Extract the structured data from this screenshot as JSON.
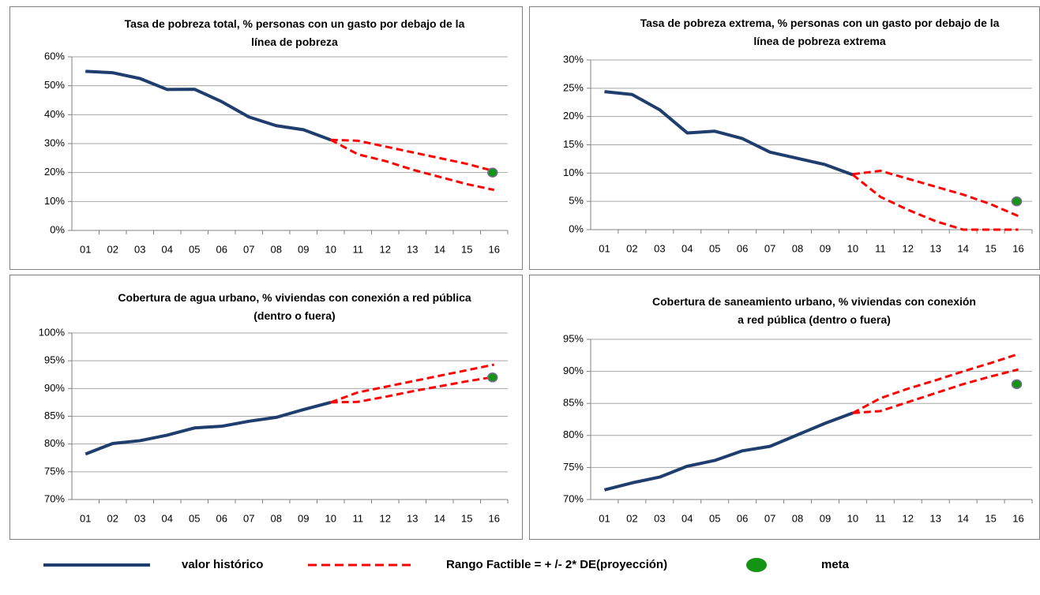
{
  "chart_data": [
    {
      "type": "line",
      "title": "Tasa de pobreza total, % personas con un gasto por debajo de la línea de pobreza",
      "categories": [
        "01",
        "02",
        "03",
        "04",
        "05",
        "06",
        "07",
        "08",
        "09",
        "10",
        "11",
        "12",
        "13",
        "14",
        "15",
        "16"
      ],
      "series": [
        {
          "color": "#1f3e6e",
          "values": [
            55,
            54.5,
            52.5,
            48.7,
            48.8,
            44.5,
            39.2,
            36.2,
            34.8,
            31.3,
            null,
            null,
            null,
            null,
            null,
            null
          ]
        },
        {
          "color": "#ff0000",
          "style": "dashed",
          "values": [
            null,
            null,
            null,
            null,
            null,
            null,
            null,
            null,
            null,
            31.3,
            31,
            29,
            27,
            25,
            23,
            20.5
          ]
        },
        {
          "color": "#ff0000",
          "style": "dashed",
          "values": [
            null,
            null,
            null,
            null,
            null,
            null,
            null,
            null,
            null,
            31.3,
            26.3,
            24,
            21,
            18.5,
            16,
            14
          ]
        },
        {
          "color": "#139413",
          "style": "marker",
          "values": [
            null,
            null,
            null,
            null,
            null,
            null,
            null,
            null,
            null,
            null,
            null,
            null,
            null,
            null,
            null,
            20
          ]
        }
      ],
      "ylim": [
        0,
        60
      ],
      "yticks": [
        {
          "value": 0,
          "label": "0%"
        },
        {
          "value": 10,
          "label": "10%"
        },
        {
          "value": 20,
          "label": "20%"
        },
        {
          "value": 30,
          "label": "30%"
        },
        {
          "value": 40,
          "label": "40%"
        },
        {
          "value": 50,
          "label": "50%"
        },
        {
          "value": 60,
          "label": "60%"
        }
      ],
      "grid": true
    },
    {
      "type": "line",
      "title": "Tasa de pobreza extrema, % personas con un gasto por debajo de la línea de pobreza extrema",
      "categories": [
        "01",
        "02",
        "03",
        "04",
        "05",
        "06",
        "07",
        "08",
        "09",
        "10",
        "11",
        "12",
        "13",
        "14",
        "15",
        "16"
      ],
      "series": [
        {
          "color": "#1f3e6e",
          "values": [
            24.4,
            23.9,
            21.2,
            17.1,
            17.4,
            16.1,
            13.7,
            12.6,
            11.5,
            9.7,
            null,
            null,
            null,
            null,
            null,
            null
          ]
        },
        {
          "color": "#ff0000",
          "style": "dashed",
          "values": [
            null,
            null,
            null,
            null,
            null,
            null,
            null,
            null,
            null,
            9.8,
            10.4,
            9,
            7.6,
            6.2,
            4.5,
            2.4
          ]
        },
        {
          "color": "#ff0000",
          "style": "dashed",
          "values": [
            null,
            null,
            null,
            null,
            null,
            null,
            null,
            null,
            null,
            9.7,
            5.8,
            3.5,
            1.5,
            0,
            0,
            0
          ]
        },
        {
          "color": "#139413",
          "style": "marker",
          "values": [
            null,
            null,
            null,
            null,
            null,
            null,
            null,
            null,
            null,
            null,
            null,
            null,
            null,
            null,
            null,
            5
          ]
        }
      ],
      "ylim": [
        0,
        30
      ],
      "yticks": [
        {
          "value": 0,
          "label": "0%"
        },
        {
          "value": 5,
          "label": "5%"
        },
        {
          "value": 10,
          "label": "10%"
        },
        {
          "value": 15,
          "label": "15%"
        },
        {
          "value": 20,
          "label": "20%"
        },
        {
          "value": 25,
          "label": "25%"
        },
        {
          "value": 30,
          "label": "30%"
        }
      ],
      "grid": true
    },
    {
      "type": "line",
      "title": "Cobertura de agua urbano, % viviendas con conexión a red pública (dentro o fuera)",
      "categories": [
        "01",
        "02",
        "03",
        "04",
        "05",
        "06",
        "07",
        "08",
        "09",
        "10",
        "11",
        "12",
        "13",
        "14",
        "15",
        "16"
      ],
      "series": [
        {
          "color": "#1f3e6e",
          "values": [
            78.2,
            80.1,
            80.6,
            81.6,
            82.9,
            83.2,
            84.1,
            84.8,
            86.2,
            87.5,
            null,
            null,
            null,
            null,
            null,
            null
          ]
        },
        {
          "color": "#ff0000",
          "style": "dashed",
          "values": [
            null,
            null,
            null,
            null,
            null,
            null,
            null,
            null,
            null,
            87.5,
            89.3,
            90.3,
            91.3,
            92.3,
            93.3,
            94.3
          ]
        },
        {
          "color": "#ff0000",
          "style": "dashed",
          "values": [
            null,
            null,
            null,
            null,
            null,
            null,
            null,
            null,
            null,
            87.5,
            87.6,
            88.5,
            89.5,
            90.4,
            91.3,
            92.1
          ]
        },
        {
          "color": "#139413",
          "style": "marker",
          "values": [
            null,
            null,
            null,
            null,
            null,
            null,
            null,
            null,
            null,
            null,
            null,
            null,
            null,
            null,
            null,
            92
          ]
        }
      ],
      "ylim": [
        70,
        100
      ],
      "yticks": [
        {
          "value": 70,
          "label": "70%"
        },
        {
          "value": 75,
          "label": "75%"
        },
        {
          "value": 80,
          "label": "80%"
        },
        {
          "value": 85,
          "label": "85%"
        },
        {
          "value": 90,
          "label": "90%"
        },
        {
          "value": 95,
          "label": "95%"
        },
        {
          "value": 100,
          "label": "100%"
        }
      ],
      "grid": true
    },
    {
      "type": "line",
      "title": "Cobertura de saneamiento urbano, % viviendas con conexión a red pública (dentro o fuera)",
      "categories": [
        "01",
        "02",
        "03",
        "04",
        "05",
        "06",
        "07",
        "08",
        "09",
        "10",
        "11",
        "12",
        "13",
        "14",
        "15",
        "16"
      ],
      "series": [
        {
          "color": "#1f3e6e",
          "values": [
            71.5,
            72.6,
            73.5,
            75.2,
            76.1,
            77.6,
            78.3,
            80.1,
            81.9,
            83.5,
            null,
            null,
            null,
            null,
            null,
            null
          ]
        },
        {
          "color": "#ff0000",
          "style": "dashed",
          "values": [
            null,
            null,
            null,
            null,
            null,
            null,
            null,
            null,
            null,
            83.5,
            85.8,
            87.3,
            88.6,
            90,
            91.3,
            92.7
          ]
        },
        {
          "color": "#ff0000",
          "style": "dashed",
          "values": [
            null,
            null,
            null,
            null,
            null,
            null,
            null,
            null,
            null,
            83.5,
            83.8,
            85.2,
            86.6,
            88,
            89.2,
            90.3
          ]
        },
        {
          "color": "#139413",
          "style": "marker",
          "values": [
            null,
            null,
            null,
            null,
            null,
            null,
            null,
            null,
            null,
            null,
            null,
            null,
            null,
            null,
            null,
            88
          ]
        }
      ],
      "ylim": [
        70,
        95
      ],
      "yticks": [
        {
          "value": 70,
          "label": "70%"
        },
        {
          "value": 75,
          "label": "75%"
        },
        {
          "value": 80,
          "label": "80%"
        },
        {
          "value": 85,
          "label": "85%"
        },
        {
          "value": 90,
          "label": "90%"
        },
        {
          "value": 95,
          "label": "95%"
        }
      ],
      "grid": true
    }
  ],
  "legend": [
    {
      "name": "valor histórico",
      "color": "#1f3e6e",
      "style": "solid"
    },
    {
      "name": "Rango Factible = + /- 2* DE(proyección)",
      "color": "#ff0000",
      "style": "dashed"
    },
    {
      "name": "meta",
      "color": "#139413",
      "style": "marker"
    }
  ]
}
